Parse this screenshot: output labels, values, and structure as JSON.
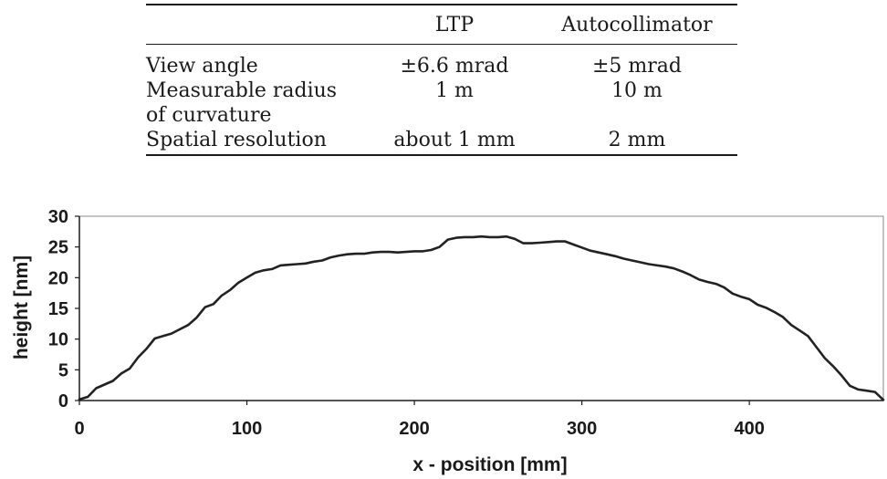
{
  "table": {
    "headers": [
      "",
      "LTP",
      "Autocollimator"
    ],
    "rows": [
      [
        "View angle",
        "±6.6 mrad",
        "±5 mrad"
      ],
      [
        "Measurable radius of curvature",
        "1 m",
        "10 m"
      ],
      [
        "Spatial resolution",
        "about 1 mm",
        "2 mm"
      ]
    ]
  },
  "chart_data": {
    "type": "line",
    "xlabel": "x - position [mm]",
    "ylabel": "height [nm]",
    "xlim": [
      0,
      480
    ],
    "ylim": [
      0,
      30
    ],
    "xticks": [
      0,
      100,
      200,
      300,
      400
    ],
    "yticks": [
      0,
      5,
      10,
      15,
      20,
      25,
      30
    ],
    "grid": false,
    "legend": "none",
    "line_color": "#222222",
    "series": [
      {
        "x": [
          0,
          5,
          10,
          15,
          20,
          25,
          30,
          35,
          40,
          45,
          50,
          55,
          60,
          65,
          70,
          75,
          80,
          85,
          90,
          95,
          100,
          105,
          110,
          115,
          120,
          125,
          130,
          135,
          140,
          145,
          150,
          155,
          160,
          165,
          170,
          175,
          180,
          185,
          190,
          195,
          200,
          205,
          210,
          215,
          220,
          225,
          230,
          235,
          240,
          245,
          250,
          255,
          260,
          265,
          270,
          275,
          280,
          285,
          290,
          295,
          300,
          305,
          310,
          315,
          320,
          325,
          330,
          335,
          340,
          345,
          350,
          355,
          360,
          365,
          370,
          375,
          380,
          385,
          390,
          395,
          400,
          405,
          410,
          415,
          420,
          425,
          430,
          435,
          440,
          445,
          450,
          455,
          460,
          465,
          470,
          475,
          480
        ],
        "y": [
          0.2,
          0.6,
          2.0,
          2.6,
          3.2,
          4.4,
          5.2,
          7.0,
          8.4,
          10.1,
          10.5,
          10.9,
          11.6,
          12.3,
          13.5,
          15.2,
          15.7,
          17.1,
          18.0,
          19.2,
          20.0,
          20.8,
          21.2,
          21.4,
          22.0,
          22.1,
          22.2,
          22.3,
          22.6,
          22.8,
          23.3,
          23.6,
          23.8,
          23.9,
          23.9,
          24.1,
          24.2,
          24.2,
          24.1,
          24.2,
          24.3,
          24.3,
          24.5,
          25.0,
          26.2,
          26.5,
          26.6,
          26.6,
          26.7,
          26.6,
          26.6,
          26.7,
          26.3,
          25.6,
          25.6,
          25.7,
          25.8,
          25.9,
          25.9,
          25.4,
          24.9,
          24.4,
          24.1,
          23.8,
          23.5,
          23.1,
          22.8,
          22.5,
          22.2,
          22.0,
          21.8,
          21.5,
          21.0,
          20.4,
          19.7,
          19.3,
          19.0,
          18.4,
          17.4,
          16.9,
          16.5,
          15.6,
          15.1,
          14.4,
          13.6,
          12.3,
          11.4,
          10.5,
          8.7,
          6.9,
          5.6,
          4.1,
          2.4,
          1.8,
          1.6,
          1.4,
          0.1
        ]
      }
    ]
  }
}
